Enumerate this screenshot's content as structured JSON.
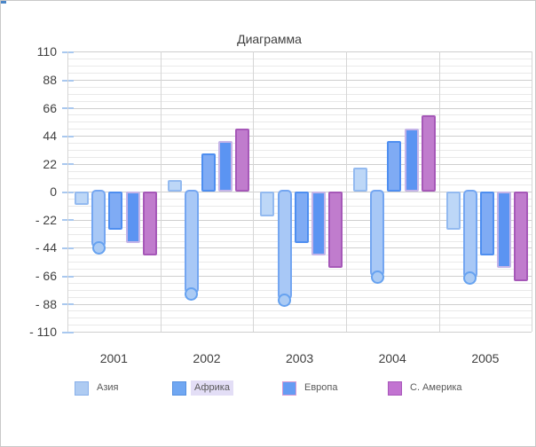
{
  "window": {
    "background": "#ffffff",
    "border_color": "#c9c9c9",
    "corner_mark_color": "#4a86c8"
  },
  "chart_data": {
    "type": "bar",
    "title": "Диаграмма",
    "categories": [
      "2001",
      "2002",
      "2003",
      "2004",
      "2005"
    ],
    "series": [
      {
        "name": "Азия",
        "values": [
          -10,
          9,
          -19,
          19,
          -30
        ],
        "fill": "#bdd7f7",
        "border": "#93baf0",
        "selected": false
      },
      {
        "name": "Африка",
        "values": [
          -44,
          -80,
          -85,
          -67,
          -68
        ],
        "fill": "#a8c8f6",
        "border": "#74a6f1",
        "selected": true
      },
      {
        "name": "",
        "values": [
          -30,
          30,
          -40,
          40,
          -50
        ],
        "fill": "#7fabf4",
        "border": "#4e8ef0",
        "selected": false
      },
      {
        "name": "Европа",
        "values": [
          -40,
          40,
          -50,
          50,
          -60
        ],
        "fill": "#5b94f2",
        "border": "#c4b4e8",
        "selected": false
      },
      {
        "name": "С. Америка",
        "values": [
          -50,
          50,
          -60,
          60,
          -70
        ],
        "fill": "#c07ccd",
        "border": "#a658b8",
        "selected": false
      }
    ],
    "ylim": [
      -110,
      110
    ],
    "y_major_step": 22,
    "y_minor_step": 5.5,
    "y_tick_labels": [
      "110",
      "88",
      "66",
      "44",
      "22",
      "0",
      "- 22",
      "- 44",
      "- 66",
      "- 88",
      "- 110"
    ],
    "legend": [
      {
        "label": "Азия",
        "fill": "#aecbf2",
        "border": "#88b0ea",
        "selected": false
      },
      {
        "label": "Африка",
        "fill": "#70a7f2",
        "border": "#5590e0",
        "selected": true
      },
      {
        "label": "Европа",
        "fill": "#659cf3",
        "border": "#d79ad2",
        "selected": false
      },
      {
        "label": "С. Америка",
        "fill": "#c273d1",
        "border": "#a856bb",
        "selected": false
      }
    ],
    "grid": {
      "major_color": "#cfcfcf",
      "minor_color": "#e9e9e9",
      "vertical_color": "#d6d6d6",
      "axis_tick_color": "#a9c8ef"
    },
    "selection": {
      "handle_fill": "#abcbf4",
      "handle_border": "#66a2f0",
      "legend_highlight": "#e3def6"
    },
    "text_color": "#3f3f3f",
    "legend_text_color": "#595959"
  }
}
